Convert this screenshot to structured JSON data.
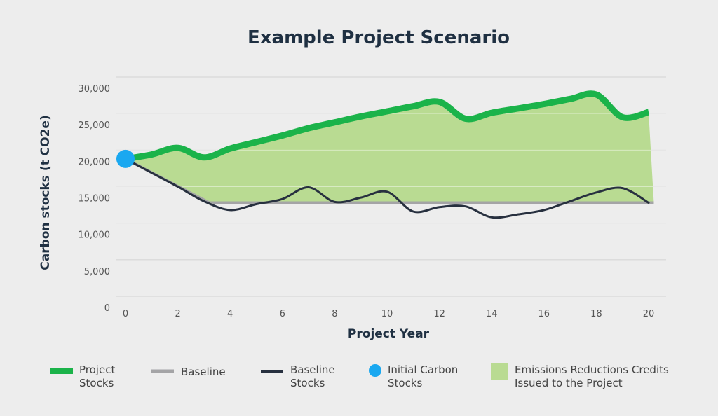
{
  "chart_data": {
    "type": "area",
    "title": "Example Project Scenario",
    "xlabel": "Project Year",
    "ylabel": "Carbon stocks (t CO2e)",
    "xlim": [
      0,
      20.2
    ],
    "ylim": [
      0,
      30000
    ],
    "x_ticks": [
      0,
      2,
      4,
      6,
      8,
      10,
      12,
      14,
      16,
      18,
      20
    ],
    "x_tick_labels": [
      "0",
      "2",
      "4",
      "6",
      "8",
      "10",
      "12",
      "14",
      "16",
      "18",
      "20"
    ],
    "y_ticks": [
      0,
      5000,
      10000,
      15000,
      20000,
      25000,
      30000
    ],
    "y_tick_labels": [
      "0",
      "5,000",
      "10,000",
      "15,000",
      "20,000",
      "25,000",
      "30,000"
    ],
    "grid": true,
    "legend_position": "bottom",
    "series": [
      {
        "name": "Project Stocks",
        "color": "#1bb34a",
        "x": [
          0,
          1,
          2,
          3,
          4,
          5,
          6,
          7,
          8,
          9,
          10,
          11,
          12,
          13,
          14,
          15,
          16,
          17,
          18,
          19,
          20
        ],
        "y": [
          18800,
          19400,
          20300,
          19000,
          20200,
          21100,
          22000,
          23000,
          23800,
          24600,
          25300,
          26000,
          26600,
          24300,
          25100,
          25700,
          26300,
          27000,
          27600,
          24500,
          25200
        ]
      },
      {
        "name": "Baseline",
        "color": "#a4a4a6",
        "x": [
          0,
          3.2,
          20.2
        ],
        "y": [
          18800,
          12800,
          12800
        ]
      },
      {
        "name": "Baseline Stocks",
        "color": "#27303f",
        "x": [
          0,
          1,
          2,
          3,
          4,
          5,
          6,
          7,
          8,
          9,
          10,
          11,
          12,
          13,
          14,
          15,
          16,
          17,
          18,
          19,
          20
        ],
        "y": [
          18800,
          16900,
          15000,
          13000,
          11800,
          12600,
          13300,
          14900,
          12900,
          13500,
          14300,
          11600,
          12200,
          12300,
          10800,
          11200,
          11800,
          13000,
          14200,
          14800,
          12800
        ]
      },
      {
        "name": "Initial Carbon Stocks",
        "color": "#1aa8f0",
        "x": [
          0
        ],
        "y": [
          18800
        ]
      },
      {
        "name": "Emissions Reductions Credits Issued to the Project",
        "color": "#b9db92"
      }
    ]
  },
  "legend": [
    {
      "key": "project",
      "lines": [
        "Project",
        "Stocks"
      ]
    },
    {
      "key": "baseline",
      "lines": [
        "Baseline"
      ]
    },
    {
      "key": "baseline_stocks",
      "lines": [
        "Baseline",
        "Stocks"
      ]
    },
    {
      "key": "initial",
      "lines": [
        "Initial Carbon",
        "Stocks"
      ]
    },
    {
      "key": "credits",
      "lines": [
        "Emissions Reductions Credits",
        "Issued to the Project"
      ]
    }
  ]
}
